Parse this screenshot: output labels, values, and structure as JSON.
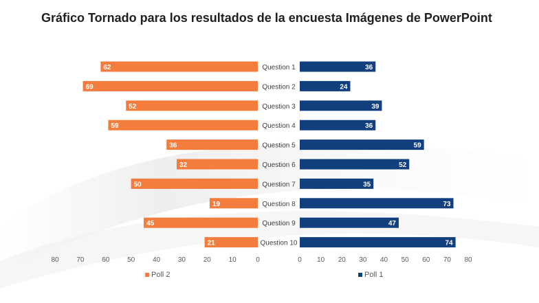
{
  "title": "Gráfico Tornado para los resultados de la encuesta Imágenes de PowerPoint",
  "chart_data": {
    "type": "bar",
    "orientation": "horizontal-tornado",
    "categories": [
      "Question 1",
      "Question 2",
      "Question 3",
      "Question 4",
      "Question 5",
      "Question 6",
      "Question 7",
      "Question 8",
      "Question 9",
      "Question 10"
    ],
    "series": [
      {
        "name": "Poll 2",
        "side": "left",
        "color": "#F47C3C",
        "values": [
          62,
          69,
          52,
          59,
          36,
          32,
          50,
          19,
          45,
          21
        ]
      },
      {
        "name": "Poll 1",
        "side": "right",
        "color": "#123F7E",
        "values": [
          36,
          24,
          39,
          36,
          59,
          52,
          35,
          73,
          47,
          74
        ]
      }
    ],
    "xlim": [
      0,
      80
    ],
    "ticks": [
      0,
      10,
      20,
      30,
      40,
      50,
      60,
      70,
      80
    ],
    "grid": false,
    "legend": "bottom"
  },
  "legend": {
    "left_label": "Poll 2",
    "right_label": "Poll 1"
  }
}
